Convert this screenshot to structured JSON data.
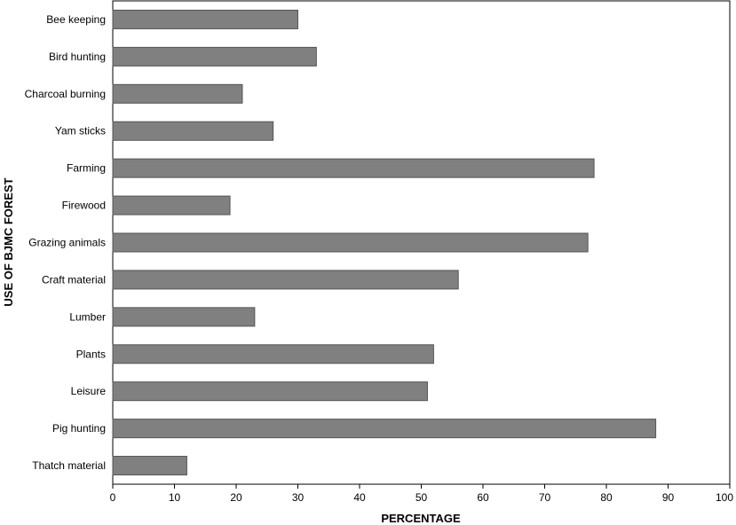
{
  "chart_data": {
    "type": "bar",
    "orientation": "horizontal",
    "categories": [
      "Bee keeping",
      "Bird hunting",
      "Charcoal burning",
      "Yam sticks",
      "Farming",
      "Firewood",
      "Grazing animals",
      "Craft material",
      "Lumber",
      "Plants",
      "Leisure",
      "Pig hunting",
      "Thatch  material"
    ],
    "values": [
      30,
      33,
      21,
      26,
      78,
      19,
      77,
      56,
      23,
      52,
      51,
      88,
      12
    ],
    "xlabel": "PERCENTAGE",
    "ylabel": "USE OF BJMC FOREST",
    "xlim": [
      0,
      100
    ],
    "xticks": [
      0,
      10,
      20,
      30,
      40,
      50,
      60,
      70,
      80,
      90,
      100
    ],
    "grid": false,
    "bar_color": "#808080"
  }
}
